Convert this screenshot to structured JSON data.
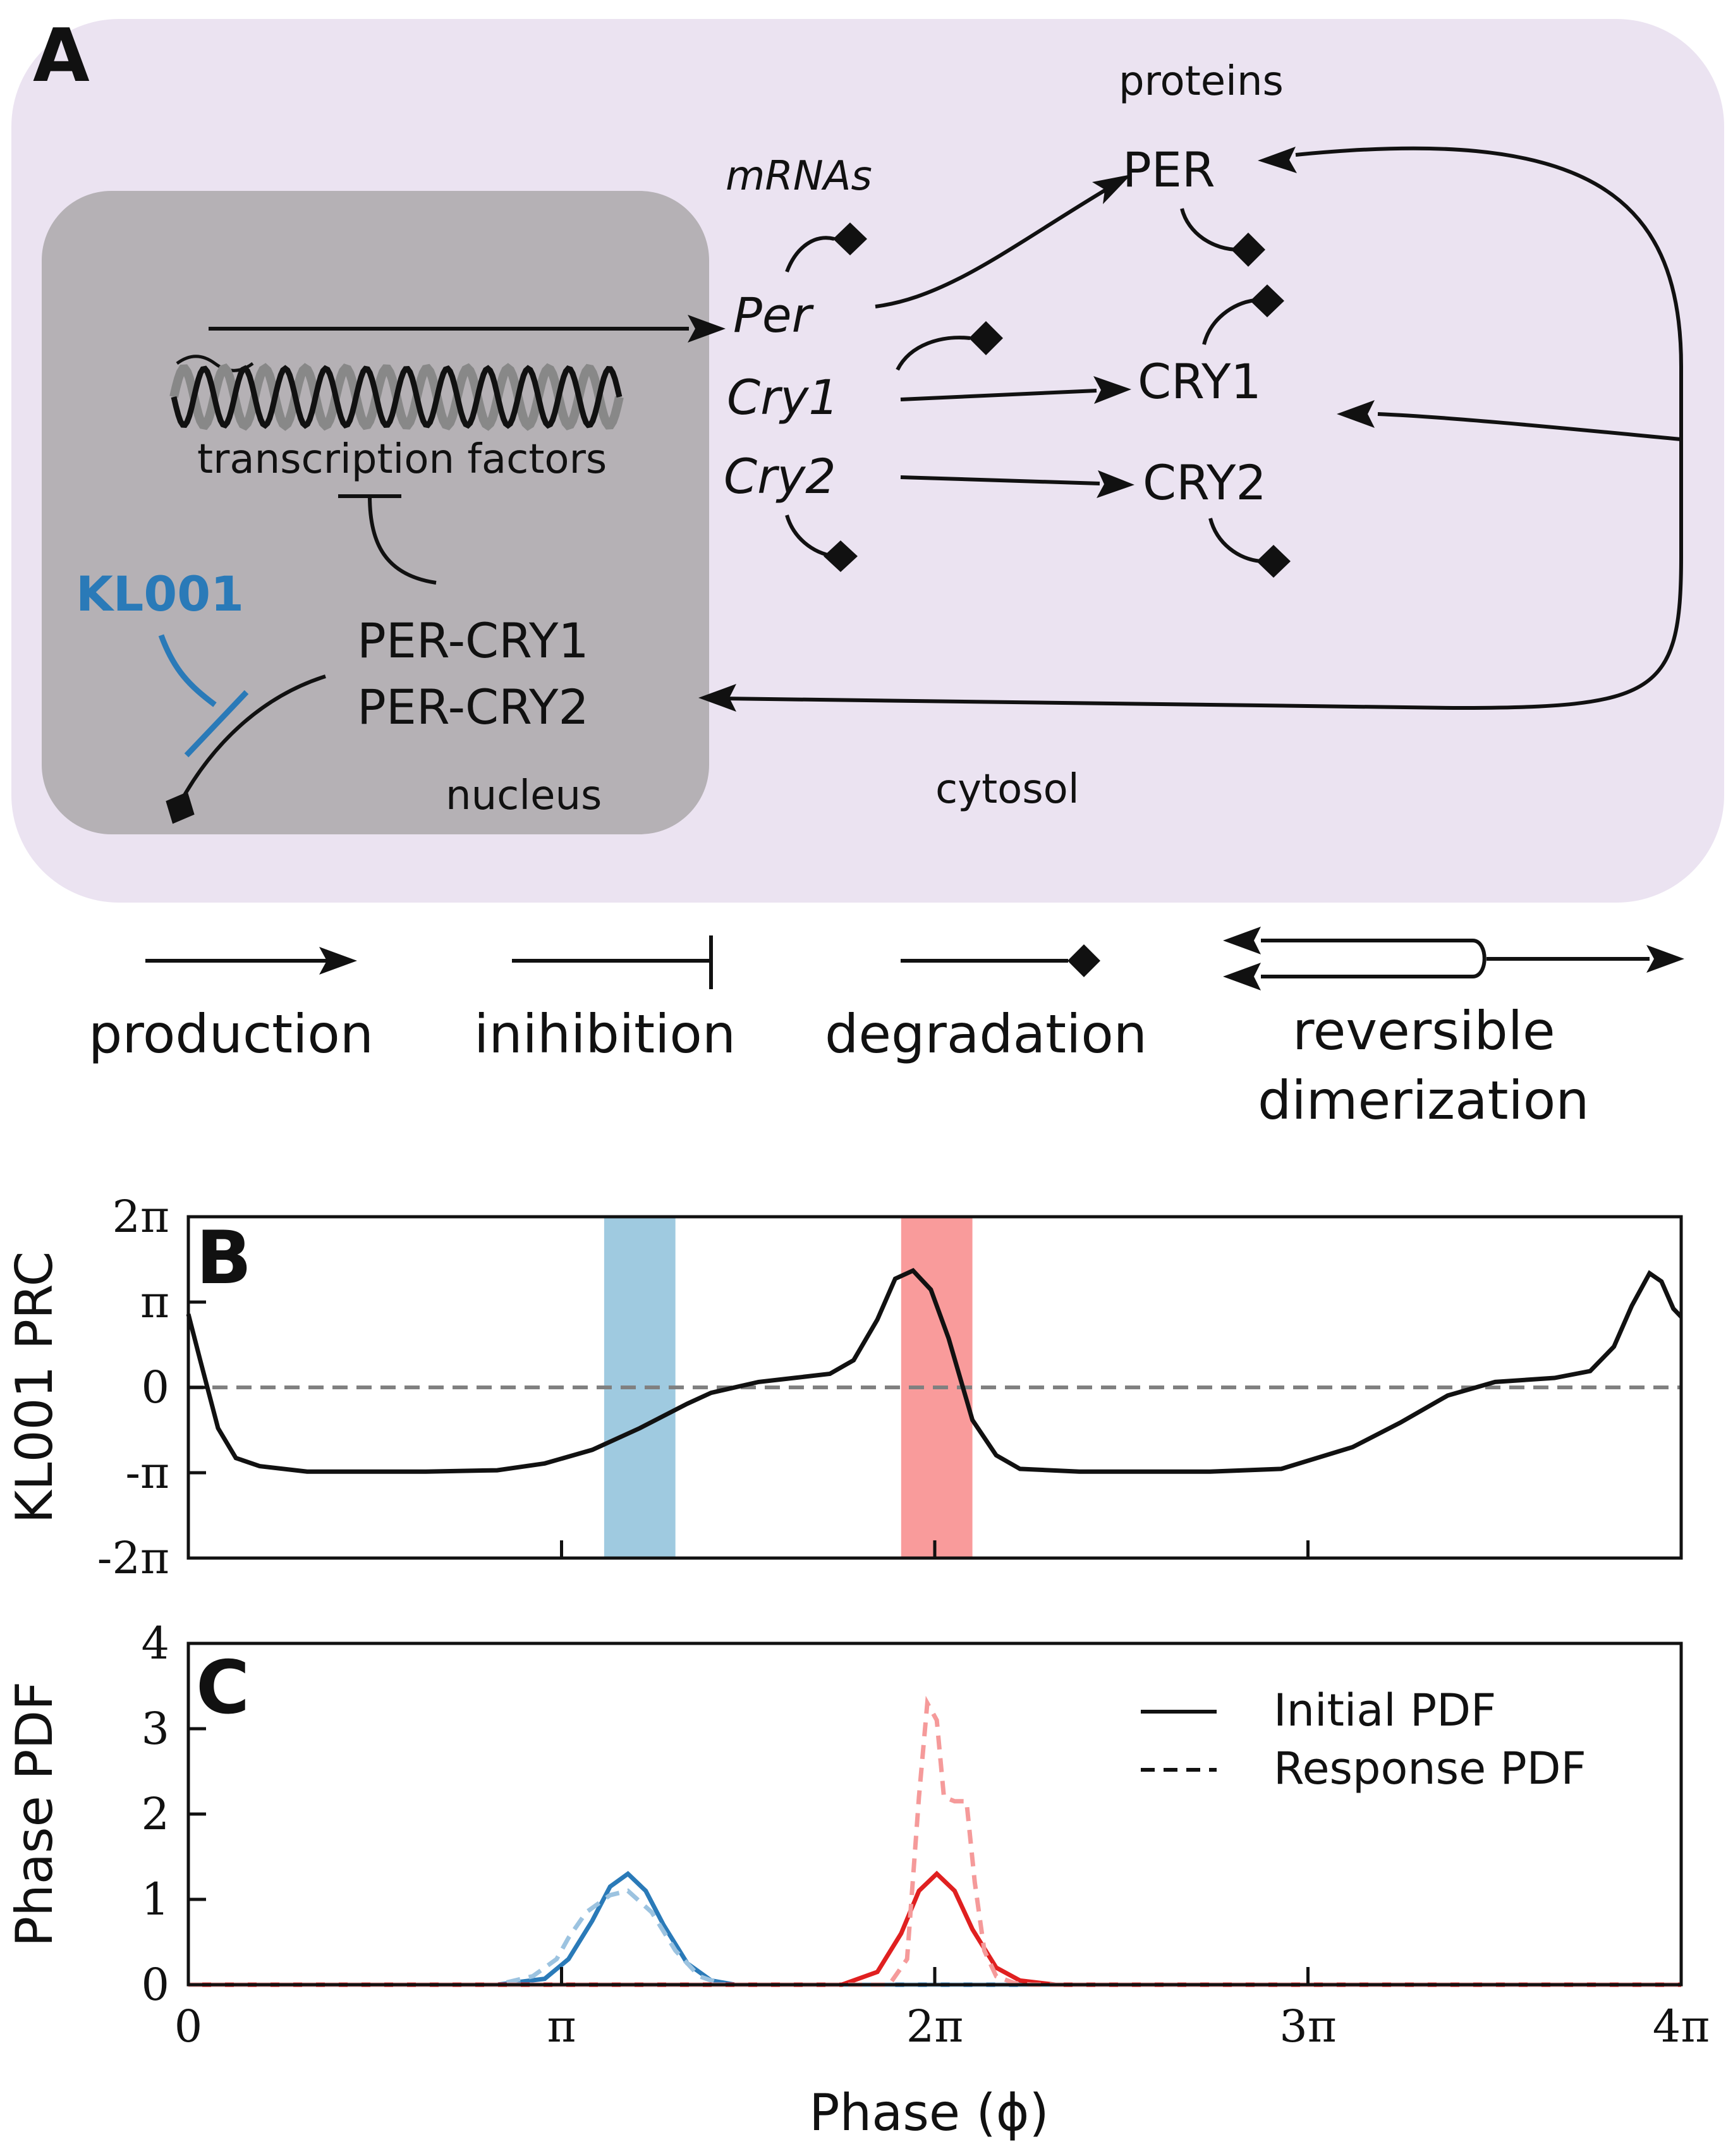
{
  "panel_a": {
    "letter": "A",
    "compartments": {
      "nucleus": "nucleus",
      "cytosol": "cytosol"
    },
    "headers": {
      "mrnas": "mRNAs",
      "proteins": "proteins"
    },
    "mrnas": [
      "Per",
      "Cry1",
      "Cry2"
    ],
    "proteins": [
      "PER",
      "CRY1",
      "CRY2"
    ],
    "dna_label": "transcription factors",
    "complexes": [
      "PER-CRY1",
      "PER-CRY2"
    ],
    "drug": "KL001",
    "colors": {
      "cytosol": "#ebe3f1",
      "nucleus": "#b5b1b5",
      "drug": "#2a7ab8"
    }
  },
  "legend": {
    "production": "production",
    "inhibition": "inihibition",
    "degradation": "degradation",
    "dimerization_line1": "reversible",
    "dimerization_line2": "dimerization"
  },
  "panel_b": {
    "letter": "B",
    "ylabel": "KL001 PRC",
    "yticks": [
      "2π",
      "π",
      "0",
      "-π",
      "-2π"
    ]
  },
  "panel_c": {
    "letter": "C",
    "ylabel": "Phase PDF",
    "yticks": [
      "4",
      "3",
      "2",
      "1",
      "0"
    ],
    "legend_initial": "Initial PDF",
    "legend_response": "Response PDF"
  },
  "x_axis": {
    "title": "Phase (ϕ)",
    "ticks": [
      "0",
      "π",
      "2π",
      "3π",
      "4π"
    ]
  },
  "chart_data": [
    {
      "type": "line",
      "ylabel": "KL001 PRC",
      "xlim": [
        0,
        12.566
      ],
      "ylim": [
        -6.283,
        6.283
      ],
      "highlight_bands": [
        {
          "x": [
            3.5,
            4.1
          ],
          "color": "#7fb8d6"
        },
        {
          "x": [
            6.0,
            6.6
          ],
          "color": "#f77a7a"
        }
      ],
      "zero_line": {
        "y": 0,
        "style": "dashed",
        "color": "#808080"
      },
      "series": [
        {
          "color": "#111111",
          "x": [
            0,
            0.1,
            0.25,
            0.4,
            0.6,
            1.0,
            2.0,
            2.6,
            3.0,
            3.4,
            3.8,
            4.2,
            4.4,
            4.8,
            5.1,
            5.4,
            5.6,
            5.8,
            5.95,
            6.1,
            6.25,
            6.4,
            6.6,
            6.8,
            7.0,
            7.5,
            8.6,
            9.2,
            9.8,
            10.2,
            10.6,
            11.0,
            11.5,
            11.8,
            12.0,
            12.15,
            12.3,
            12.4,
            12.5,
            12.566
          ],
          "y": [
            2.7,
            1.0,
            -1.5,
            -2.6,
            -2.9,
            -3.1,
            -3.1,
            -3.05,
            -2.8,
            -2.3,
            -1.5,
            -0.6,
            -0.2,
            0.2,
            0.35,
            0.5,
            1.0,
            2.5,
            4.0,
            4.3,
            3.6,
            1.8,
            -1.2,
            -2.5,
            -3.0,
            -3.1,
            -3.1,
            -3.0,
            -2.2,
            -1.3,
            -0.3,
            0.2,
            0.35,
            0.6,
            1.5,
            3.0,
            4.2,
            3.9,
            2.9,
            2.6
          ]
        }
      ]
    },
    {
      "type": "line",
      "ylabel": "Phase PDF",
      "xlim": [
        0,
        12.566
      ],
      "ylim": [
        0,
        4
      ],
      "legend": "top-right",
      "series": [
        {
          "name": "Initial PDF",
          "color": "#2a7ab8",
          "style": "solid",
          "x": [
            2.6,
            3.0,
            3.2,
            3.4,
            3.55,
            3.7,
            3.85,
            4.0,
            4.2,
            4.4,
            4.6
          ],
          "y": [
            0.0,
            0.07,
            0.3,
            0.75,
            1.15,
            1.3,
            1.1,
            0.7,
            0.25,
            0.05,
            0.0
          ]
        },
        {
          "name": "Response PDF",
          "color": "#9cc3e0",
          "style": "dashed",
          "x": [
            2.6,
            2.9,
            3.1,
            3.2,
            3.35,
            3.55,
            3.7,
            3.9,
            4.1,
            4.3,
            4.5
          ],
          "y": [
            0.0,
            0.1,
            0.3,
            0.55,
            0.85,
            1.05,
            1.1,
            0.85,
            0.4,
            0.1,
            0.0
          ]
        },
        {
          "name": "Initial PDF",
          "color": "#e02020",
          "style": "solid",
          "x": [
            5.5,
            5.8,
            6.0,
            6.15,
            6.3,
            6.45,
            6.6,
            6.8,
            7.0,
            7.3
          ],
          "y": [
            0.0,
            0.15,
            0.6,
            1.1,
            1.3,
            1.1,
            0.65,
            0.2,
            0.05,
            0.0
          ]
        },
        {
          "name": "Response PDF",
          "color": "#f59a9a",
          "style": "dashed",
          "x": [
            5.9,
            6.05,
            6.15,
            6.22,
            6.3,
            6.36,
            6.45,
            6.55,
            6.62,
            6.7,
            6.8,
            6.95,
            7.1
          ],
          "y": [
            0.0,
            0.3,
            2.2,
            3.3,
            3.1,
            2.2,
            2.15,
            2.15,
            1.2,
            0.4,
            0.1,
            0.02,
            0.0
          ]
        }
      ]
    }
  ]
}
